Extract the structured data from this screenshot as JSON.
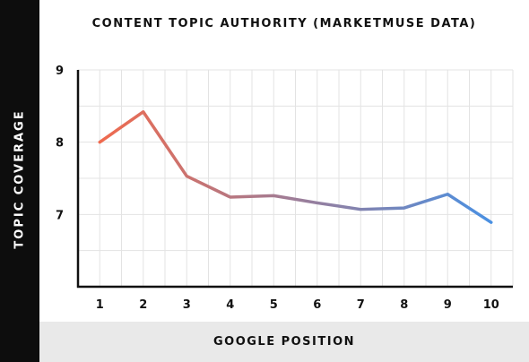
{
  "chart_data": {
    "type": "line",
    "title": "CONTENT TOPIC AUTHORITY (MARKETMUSE DATA)",
    "xlabel": "GOOGLE POSITION",
    "ylabel": "TOPIC COVERAGE",
    "x": [
      1,
      2,
      3,
      4,
      5,
      6,
      7,
      8,
      9,
      10
    ],
    "series": [
      {
        "values": [
          8.0,
          8.42,
          7.53,
          7.24,
          7.26,
          7.16,
          7.07,
          7.09,
          7.28,
          6.89
        ]
      }
    ],
    "y_ticks": [
      7,
      8,
      9
    ],
    "x_ticks": [
      1,
      2,
      3,
      4,
      5,
      6,
      7,
      8,
      9,
      10
    ],
    "ylim": [
      6,
      9
    ],
    "xlim": [
      0.5,
      10.5
    ],
    "grid": true,
    "legend": "none",
    "colors": {
      "line_start": "#f06a4e",
      "line_end": "#4a90e2",
      "grid": "#e3e3e3",
      "axis": "#111111"
    }
  }
}
